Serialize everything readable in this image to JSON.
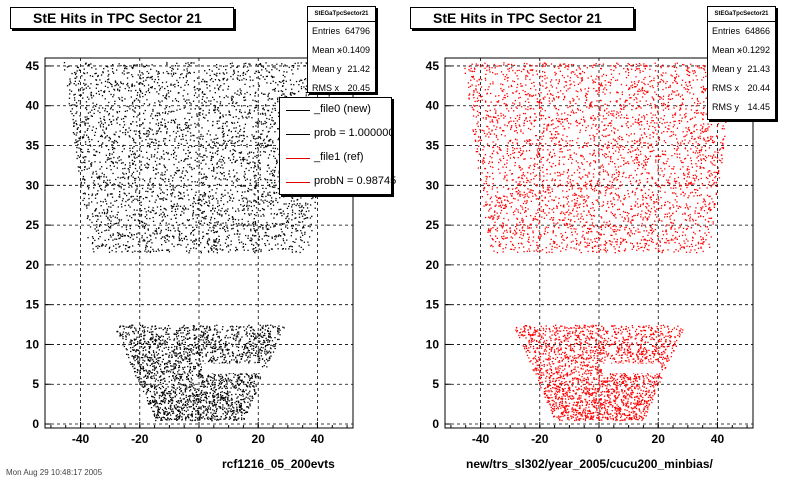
{
  "chart_data": [
    {
      "type": "scatter",
      "title": "StE Hits in TPC Sector 21",
      "xlabel": "rcf1216_05_200evts",
      "ylabel": "",
      "xlim": [
        -52,
        52
      ],
      "ylim": [
        -0.5,
        46
      ],
      "x_ticks": [
        -40,
        -20,
        0,
        20,
        40
      ],
      "y_ticks": [
        0,
        5,
        10,
        15,
        20,
        25,
        30,
        35,
        40,
        45
      ],
      "grid": true,
      "color": "#000000",
      "stats": {
        "header": "StEGaTpcSector21",
        "rows": [
          {
            "label": "Entries",
            "value": "64796"
          },
          {
            "label": "Mean x",
            "value": "-0.1409"
          },
          {
            "label": "Mean y",
            "value": "21.42"
          },
          {
            "label": "RMS x",
            "value": "20.45"
          }
        ]
      },
      "legend": {
        "placement": "top-right",
        "entries": [
          {
            "text": "_file0 (new)",
            "color": "#000000"
          },
          {
            "text": "prob = 1.000000",
            "color": "#000000"
          },
          {
            "text": "_file1 (ref)",
            "color": "#e00000"
          },
          {
            "text": "probN = 0.98745",
            "color": "#e00000"
          }
        ]
      },
      "regions": [
        {
          "y_range": [
            21.6,
            45.5
          ],
          "x_half_width_at_ymin": 37,
          "x_half_width_at_ymax": 46
        },
        {
          "y_range": [
            0.5,
            12.5
          ],
          "x_half_width_at_ymin": 15,
          "x_half_width_at_ymax": 29
        }
      ]
    },
    {
      "type": "scatter",
      "title": "StE Hits in TPC Sector 21",
      "xlabel": "new/trs_sl302/year_2005/cucu200_minbias/",
      "ylabel": "",
      "xlim": [
        -52,
        52
      ],
      "ylim": [
        -0.5,
        46
      ],
      "x_ticks": [
        -40,
        -20,
        0,
        20,
        40
      ],
      "y_ticks": [
        0,
        5,
        10,
        15,
        20,
        25,
        30,
        35,
        40,
        45
      ],
      "grid": true,
      "color": "#ff0000",
      "stats": {
        "header": "StEGaTpcSector21",
        "rows": [
          {
            "label": "Entries",
            "value": "64866"
          },
          {
            "label": "Mean x",
            "value": "-0.1292"
          },
          {
            "label": "Mean y",
            "value": "21.43"
          },
          {
            "label": "RMS x",
            "value": "20.44"
          },
          {
            "label": "RMS y",
            "value": "14.45"
          }
        ]
      },
      "regions": [
        {
          "y_range": [
            21.6,
            45.5
          ],
          "x_half_width_at_ymin": 37,
          "x_half_width_at_ymax": 46
        },
        {
          "y_range": [
            0.5,
            12.5
          ],
          "x_half_width_at_ymin": 15,
          "x_half_width_at_ymax": 29
        }
      ]
    }
  ],
  "footer": "Mon Aug 29 10:48:17 2005"
}
